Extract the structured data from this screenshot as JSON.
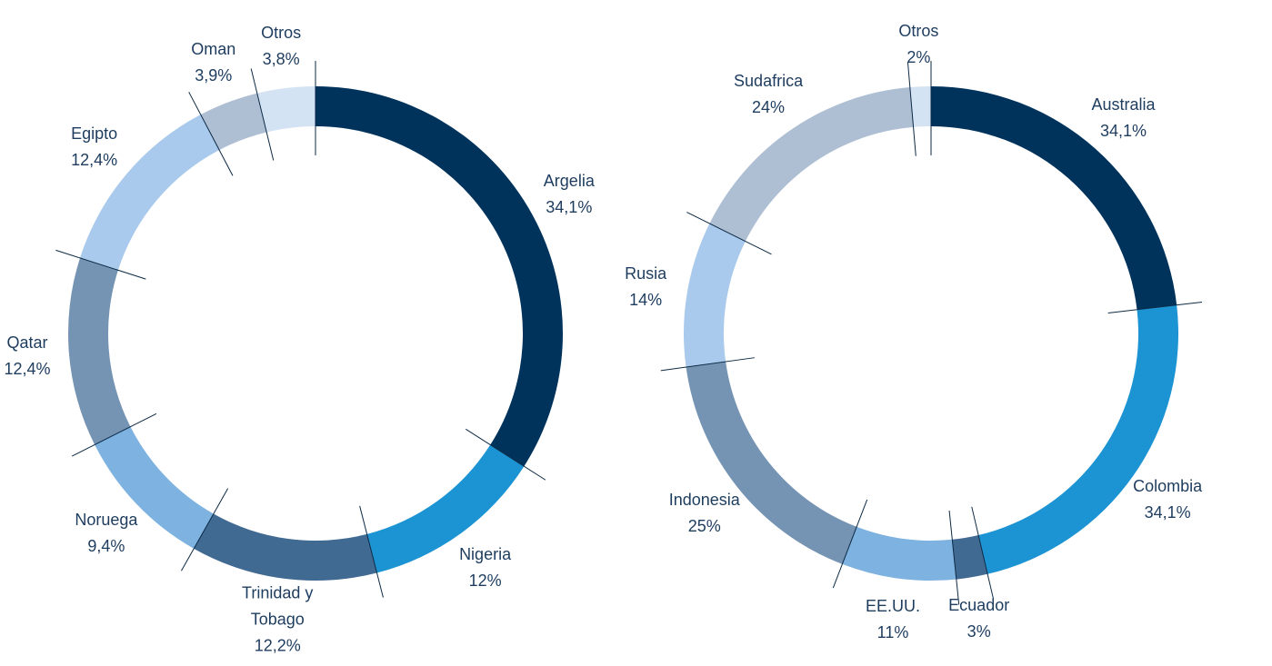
{
  "chart_data": [
    {
      "type": "pie",
      "donut": true,
      "categories": [
        "Argelia",
        "Nigeria",
        "Trinidad y Tobago",
        "Noruega",
        "Qatar",
        "Egipto",
        "Oman",
        "Otros"
      ],
      "values": [
        34.1,
        12,
        12.2,
        9.4,
        12.4,
        12.4,
        3.9,
        3.8
      ],
      "value_labels": [
        "34,1%",
        "12%",
        "12,2%",
        "9,4%",
        "12,4%",
        "12,4%",
        "3,9%",
        "3,8%"
      ],
      "colors": [
        "#00335c",
        "#1c93d2",
        "#416a93",
        "#7eb2e0",
        "#7594b3",
        "#a9caec",
        "#aebfd4",
        "#d3e3f3"
      ]
    },
    {
      "type": "pie",
      "donut": true,
      "categories": [
        "Australia",
        "Colombia",
        "Ecuador",
        "EE.UU.",
        "Indonesia",
        "Rusia",
        "Sudafrica",
        "Otros"
      ],
      "values": [
        34.1,
        34.1,
        3,
        11,
        25,
        14,
        24,
        2
      ],
      "value_labels": [
        "34,1%",
        "34,1%",
        "3%",
        "11%",
        "25%",
        "14%",
        "24%",
        "2%"
      ],
      "colors": [
        "#00335c",
        "#1c93d2",
        "#416a93",
        "#7eb2e0",
        "#7594b3",
        "#a9caec",
        "#aebfd4",
        "#d3e3f3"
      ]
    }
  ]
}
